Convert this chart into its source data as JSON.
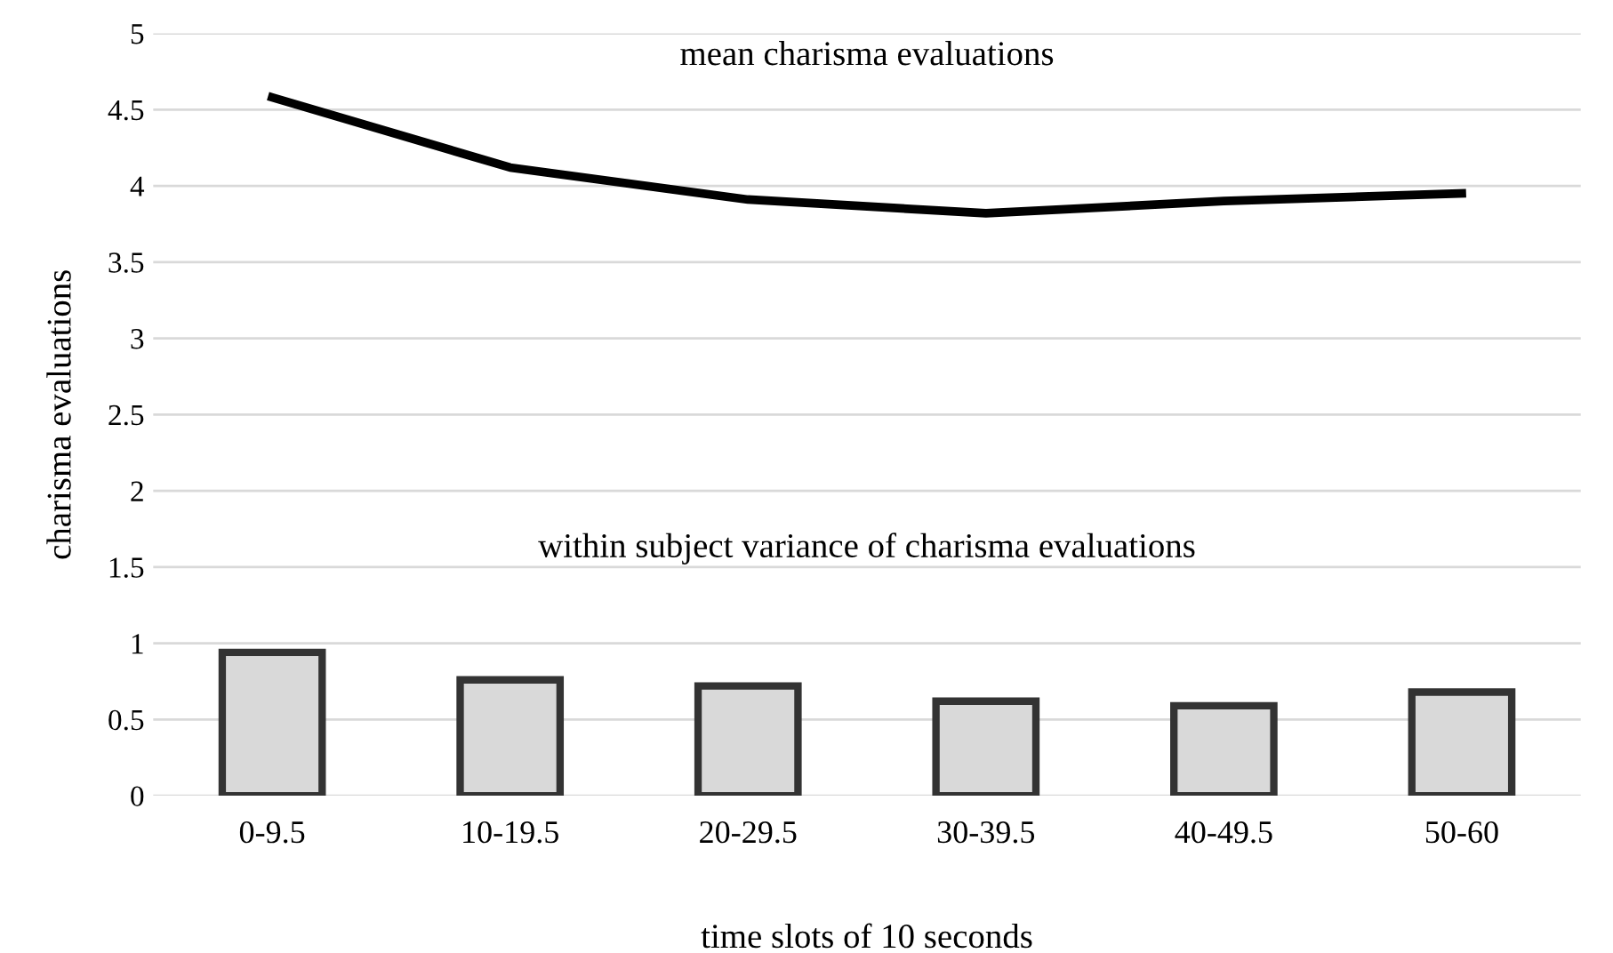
{
  "chart_data": {
    "type": "bar",
    "xlabel": "time slots of 10 seconds",
    "ylabel": "charisma evaluations",
    "categories": [
      "0-9.5",
      "10-19.5",
      "20-29.5",
      "30-39.5",
      "40-49.5",
      "50-60"
    ],
    "series": [
      {
        "color": "#d9d9d9",
        "values": [
          0.94,
          0.76,
          0.72,
          0.62,
          0.59,
          0.68
        ]
      },
      {
        "type": "line",
        "color": "#000000",
        "values": [
          4.58,
          4.12,
          3.91,
          3.82,
          3.9,
          3.95
        ]
      }
    ],
    "annotations": [
      "mean charisma evaluations",
      "within subject variance of charisma evaluations"
    ],
    "ylim": [
      0,
      5
    ],
    "yticks": [
      0,
      0.5,
      1,
      1.5,
      2,
      2.5,
      3,
      3.5,
      4,
      4.5,
      5
    ],
    "grid": "y",
    "legend": false,
    "marker": "none",
    "line_style": "solid"
  }
}
